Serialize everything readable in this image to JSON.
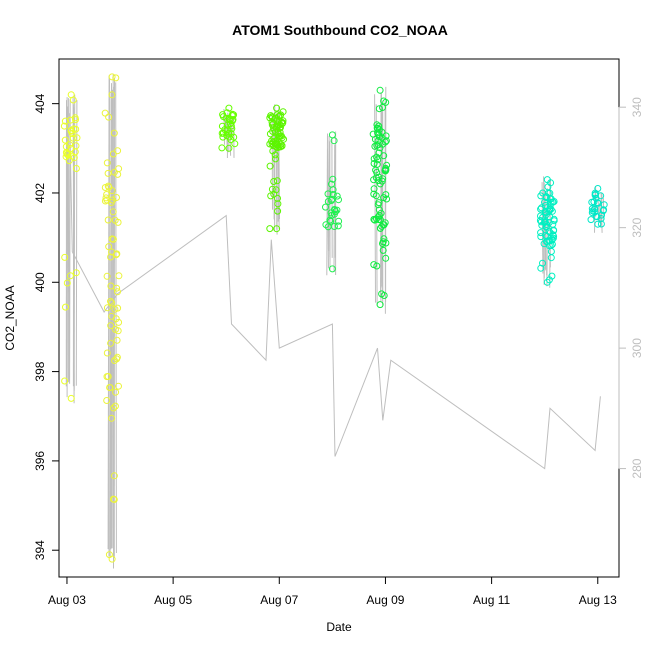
{
  "chart_data": {
    "type": "scatter",
    "title": "ATOM1 Southbound CO2_NOAA",
    "xlabel": "Date",
    "ylabel": "CO2_NOAA",
    "x_ticks": [
      {
        "day": 3,
        "label": "Aug 03"
      },
      {
        "day": 5,
        "label": "Aug 05"
      },
      {
        "day": 7,
        "label": "Aug 07"
      },
      {
        "day": 9,
        "label": "Aug 09"
      },
      {
        "day": 11,
        "label": "Aug 11"
      },
      {
        "day": 13,
        "label": "Aug 13"
      }
    ],
    "xlim": [
      2.85,
      13.4
    ],
    "ylim": [
      393.4,
      405.0
    ],
    "y_ticks": [
      394,
      396,
      398,
      400,
      402,
      404
    ],
    "y2_label": "",
    "y2lim": [
      262,
      348
    ],
    "y2_ticks": [
      280,
      300,
      320,
      340
    ],
    "colors": {
      "points_scale": [
        "#e6f542",
        "#c8ff1a",
        "#5aff00",
        "#00f07a",
        "#00ffd0"
      ],
      "secondary_line": "#bebebe",
      "axis": "#000000"
    },
    "clusters": [
      {
        "day": 3.08,
        "color": "#eaff2a",
        "y_low": 397.4,
        "y_high": 404.2,
        "dense_low": 402.8,
        "dense_high": 403.7,
        "n": 34
      },
      {
        "day": 3.85,
        "color": "#ebf43a",
        "y_low": 393.8,
        "y_high": 404.6,
        "dense_low": 397.5,
        "dense_high": 403.0,
        "n": 70
      },
      {
        "day": 6.05,
        "color": "#66ff00",
        "y_low": 403.0,
        "y_high": 403.9,
        "dense_low": 403.2,
        "dense_high": 403.8,
        "n": 30
      },
      {
        "day": 6.95,
        "color": "#5cf500",
        "y_low": 401.2,
        "y_high": 403.9,
        "dense_low": 403.0,
        "dense_high": 403.8,
        "n": 70
      },
      {
        "day": 8.0,
        "color": "#20f050",
        "y_low": 400.3,
        "y_high": 403.3,
        "dense_low": 401.2,
        "dense_high": 402.0,
        "n": 26
      },
      {
        "day": 8.9,
        "color": "#10ec40",
        "y_low": 399.5,
        "y_high": 404.3,
        "dense_low": 401.2,
        "dense_high": 403.6,
        "n": 80
      },
      {
        "day": 12.05,
        "color": "#00f0c2",
        "y_low": 400.0,
        "y_high": 402.3,
        "dense_low": 400.8,
        "dense_high": 402.0,
        "n": 70
      },
      {
        "day": 13.0,
        "color": "#00e8c8",
        "y_low": 401.3,
        "y_high": 402.1,
        "dense_low": 401.4,
        "dense_high": 402.0,
        "n": 24
      }
    ],
    "secondary_series": {
      "name": "grey trace (right axis)",
      "x": [
        3.05,
        3.1,
        3.7,
        3.95,
        6.0,
        6.1,
        6.75,
        6.85,
        7.0,
        8.0,
        8.05,
        8.85,
        8.95,
        9.1,
        12.0,
        12.1,
        12.95,
        13.05
      ],
      "y": [
        339,
        316,
        306,
        309,
        322,
        304,
        298,
        318,
        300,
        304,
        282,
        300,
        288,
        298,
        280,
        290,
        283,
        292
      ]
    }
  }
}
